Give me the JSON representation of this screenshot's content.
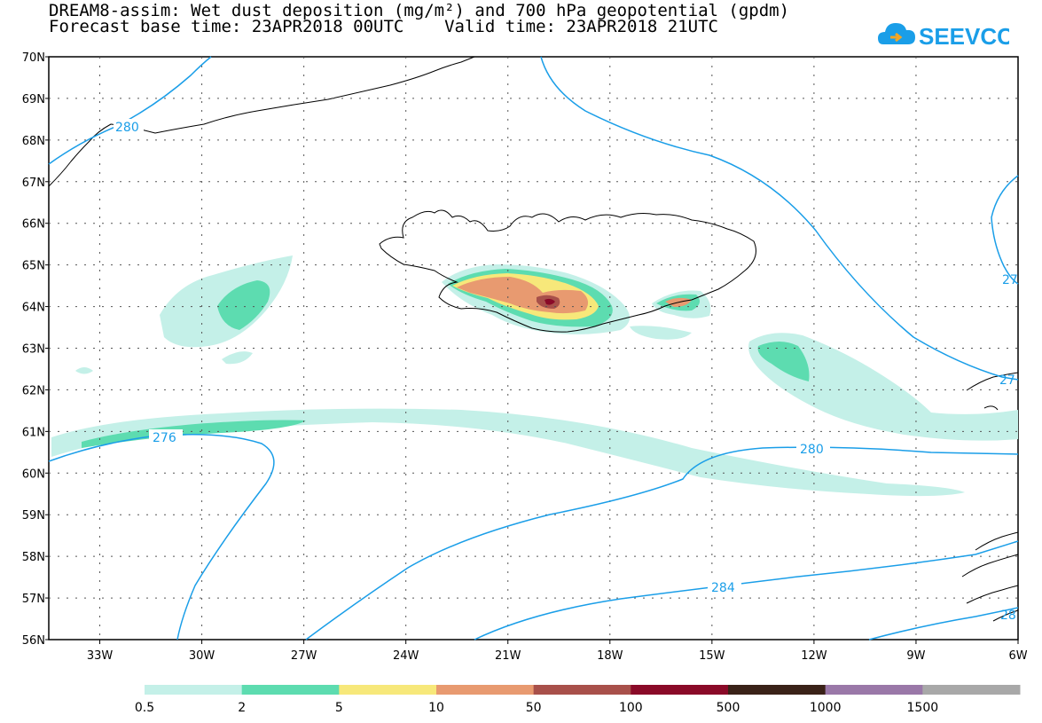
{
  "title": {
    "line1": "DREAM8-assim: Wet dust deposition (mg/m²) and 700 hPa geopotential (gpdm)",
    "line2": "Forecast base time: 23APR2018 00UTC    Valid time: 23APR2018 21UTC"
  },
  "logo": {
    "text": "SEEVCCC",
    "icon": "cloud-icon",
    "color": "#1a9ee8"
  },
  "map": {
    "lon_range": [
      -34.5,
      -6
    ],
    "lat_range": [
      56,
      70
    ],
    "grid": "dotted",
    "lat_labels": [
      "70N",
      "69N",
      "68N",
      "67N",
      "66N",
      "65N",
      "64N",
      "63N",
      "62N",
      "61N",
      "60N",
      "59N",
      "58N",
      "57N",
      "56N"
    ],
    "lat_values": [
      70,
      69,
      68,
      67,
      66,
      65,
      64,
      63,
      62,
      61,
      60,
      59,
      58,
      57,
      56
    ],
    "lon_labels": [
      "33W",
      "30W",
      "27W",
      "24W",
      "21W",
      "18W",
      "15W",
      "12W",
      "9W",
      "6W"
    ],
    "lon_values": [
      -33,
      -30,
      -27,
      -24,
      -21,
      -18,
      -15,
      -12,
      -9,
      -6
    ],
    "contour_color": "#1a9ee8",
    "contour_labels": [
      "280",
      "276",
      "280",
      "284",
      "27",
      "27",
      "28"
    ]
  },
  "legend": {
    "labels": [
      "0.5",
      "2",
      "5",
      "10",
      "50",
      "100",
      "500",
      "1000",
      "1500"
    ],
    "colors": [
      "#c4f0e8",
      "#5ddcb0",
      "#f7e87a",
      "#e89a70",
      "#a8504a",
      "#8a0a28",
      "#3a2218",
      "#9a78a8",
      "#a8a8a8"
    ]
  }
}
